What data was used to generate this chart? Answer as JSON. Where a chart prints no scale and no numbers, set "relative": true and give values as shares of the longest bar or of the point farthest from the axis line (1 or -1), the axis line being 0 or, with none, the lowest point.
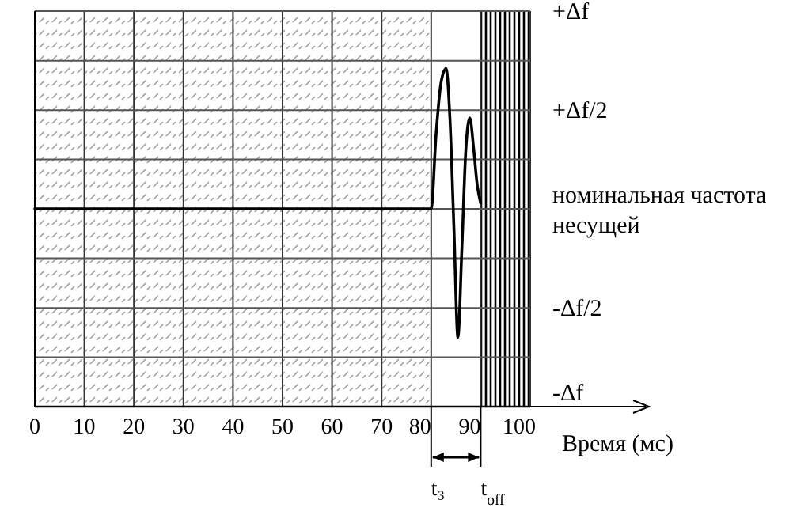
{
  "chart_data": {
    "type": "line",
    "xlabel": "Время (мс)",
    "relative": true,
    "xlim": [
      0,
      100
    ],
    "xticks": [
      0,
      10,
      20,
      30,
      40,
      50,
      60,
      70,
      80,
      90,
      100
    ],
    "grid": "x",
    "series": [
      {
        "color": "#000000",
        "x": [
          0,
          80,
          81,
          82,
          83,
          83.8,
          84.6,
          85.4,
          86.2,
          87,
          87.8,
          88.6,
          89.3,
          90
        ],
        "values": [
          0.585,
          0.585,
          0.807,
          0.959,
          1,
          0.848,
          0.526,
          0.205,
          0.468,
          0.76,
          0.854,
          0.76,
          0.655,
          0.602
        ]
      }
    ],
    "ref_lines": [
      {
        "axis": "y",
        "value": 0,
        "label": "-Δf",
        "color": "#000000"
      },
      {
        "axis": "y",
        "value": 0.146,
        "label": null,
        "color": "#555555"
      },
      {
        "axis": "y",
        "value": 0.292,
        "label": "-Δf/2",
        "color": "#555555"
      },
      {
        "axis": "y",
        "value": 0.439,
        "label": null,
        "color": "#555555"
      },
      {
        "axis": "y",
        "value": 0.585,
        "label": "номинальная частота несущей",
        "color": "#555555"
      },
      {
        "axis": "y",
        "value": 0.731,
        "label": null,
        "color": "#555555"
      },
      {
        "axis": "y",
        "value": 0.877,
        "label": "+Δf/2",
        "color": "#555555"
      },
      {
        "axis": "y",
        "value": 1.023,
        "label": null,
        "color": "#555555"
      },
      {
        "axis": "y",
        "value": 1.17,
        "label": "+Δf",
        "color": "#555555"
      }
    ],
    "bands": [
      {
        "axis": "x",
        "from": 0,
        "to": 80,
        "color": "#9a9a9a"
      },
      {
        "axis": "x",
        "from": 90,
        "to": 100,
        "color": "#000000"
      }
    ],
    "annotations": [
      {
        "text": "t₃",
        "x": 80,
        "y": 0
      },
      {
        "text": "t$_{off}$",
        "x": 90,
        "y": 0
      }
    ]
  }
}
